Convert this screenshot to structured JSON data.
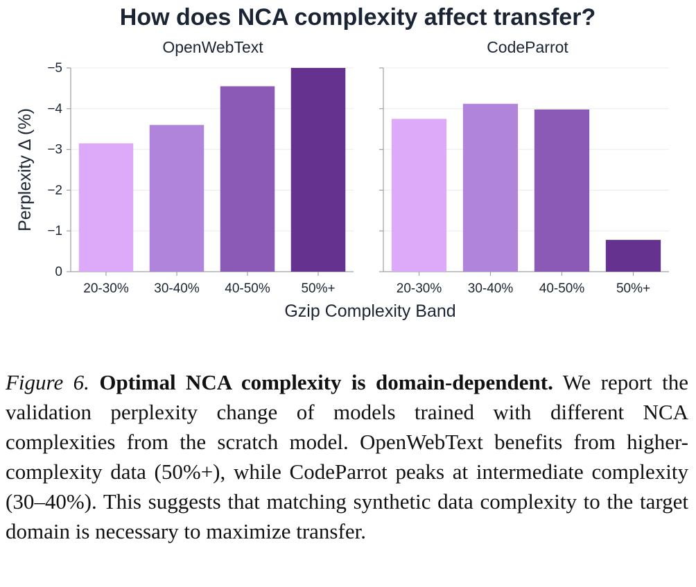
{
  "chart_data": {
    "type": "bar",
    "title": "How does NCA complexity affect transfer?",
    "xlabel": "Gzip Complexity Band",
    "ylabel": "Perplexity Δ (%)",
    "ylim": [
      0,
      -5
    ],
    "y_axis_inverted": true,
    "grid": true,
    "yticks": [
      0,
      -1,
      -2,
      -3,
      -4,
      -5
    ],
    "ytick_labels": [
      "0",
      "−1",
      "−2",
      "−3",
      "−4",
      "−5"
    ],
    "categories": [
      "20-30%",
      "30-40%",
      "40-50%",
      "50%+"
    ],
    "bar_colors": [
      "#dcaaf8",
      "#b084da",
      "#8a5ab6",
      "#65338f"
    ],
    "panels": [
      {
        "name": "OpenWebText",
        "values": [
          -3.15,
          -3.6,
          -4.55,
          -5.0
        ]
      },
      {
        "name": "CodeParrot",
        "values": [
          -3.75,
          -4.12,
          -3.98,
          -0.78
        ]
      }
    ]
  },
  "caption": {
    "label": "Figure 6.",
    "heading": "Optimal NCA complexity is domain-dependent.",
    "body": "We report the validation perplexity change of models trained with different NCA complexities from the scratch model. OpenWebText benefits from higher-complexity data (50%+), while CodeParrot peaks at intermediate complexity (30–40%).  This suggests that matching synthetic data complexity to the target domain is necessary to maximize transfer."
  }
}
